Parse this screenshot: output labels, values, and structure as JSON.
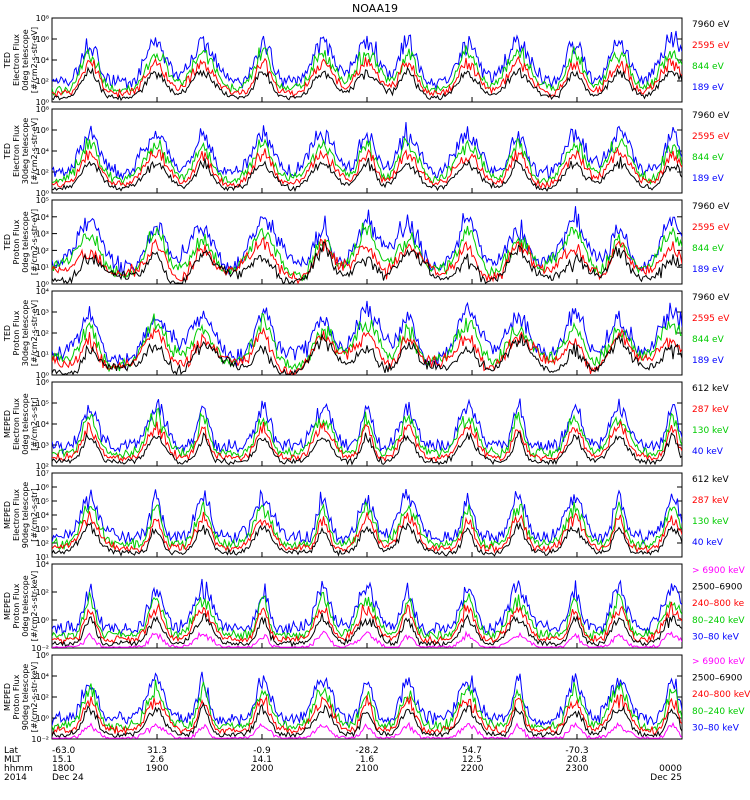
{
  "title": "NOAA19",
  "colors": {
    "blue": "#0000ff",
    "red": "#ff0000",
    "green": "#00cc00",
    "black": "#000000",
    "magenta": "#ff00ff"
  },
  "chart_data": [
    {
      "type": "line",
      "ylabel_lines": [
        "TED",
        "Electron Flux",
        "0deg telescope",
        "[#/cm2-s-str-eV]"
      ],
      "ytick_labels": [
        "10⁰",
        "10²",
        "10⁴",
        "10⁶",
        "10⁸"
      ],
      "ylim_log10": [
        0,
        8
      ],
      "legend": [
        {
          "label": "7960 eV",
          "color": "#000000"
        },
        {
          "label": "2595 eV",
          "color": "#ff0000"
        },
        {
          "label": "844 eV",
          "color": "#00cc00"
        },
        {
          "label": "189 eV",
          "color": "#0000ff"
        }
      ]
    },
    {
      "type": "line",
      "ylabel_lines": [
        "TED",
        "Electron Flux",
        "30deg telescope",
        "[#/cm2-s-str-eV]"
      ],
      "ytick_labels": [
        "10⁰",
        "10²",
        "10⁴",
        "10⁶",
        "10⁸"
      ],
      "ylim_log10": [
        0,
        8
      ],
      "legend": [
        {
          "label": "7960 eV",
          "color": "#000000"
        },
        {
          "label": "2595 eV",
          "color": "#ff0000"
        },
        {
          "label": "844 eV",
          "color": "#00cc00"
        },
        {
          "label": "189 eV",
          "color": "#0000ff"
        }
      ]
    },
    {
      "type": "line",
      "ylabel_lines": [
        "TED",
        "Proton Flux",
        "0deg telescope",
        "[#/cm2-s-str-eV]"
      ],
      "ytick_labels": [
        "10⁰",
        "10¹",
        "10²",
        "10³",
        "10⁴",
        "10⁵"
      ],
      "ylim_log10": [
        0,
        5
      ],
      "legend": [
        {
          "label": "7960 eV",
          "color": "#000000"
        },
        {
          "label": "2595 eV",
          "color": "#ff0000"
        },
        {
          "label": "844 eV",
          "color": "#00cc00"
        },
        {
          "label": "189 eV",
          "color": "#0000ff"
        }
      ]
    },
    {
      "type": "line",
      "ylabel_lines": [
        "TED",
        "Proton Flux",
        "30deg telescope",
        "[#/cm2-s-str-eV]"
      ],
      "ytick_labels": [
        "10⁰",
        "10¹",
        "10²",
        "10³",
        "10⁴"
      ],
      "ylim_log10": [
        0,
        4
      ],
      "legend": [
        {
          "label": "7960 eV",
          "color": "#000000"
        },
        {
          "label": "2595 eV",
          "color": "#ff0000"
        },
        {
          "label": "844 eV",
          "color": "#00cc00"
        },
        {
          "label": "189 eV",
          "color": "#0000ff"
        }
      ]
    },
    {
      "type": "line",
      "ylabel_lines": [
        "MEPED",
        "Electron Flux",
        "0deg telescope",
        "[#/cm2-s-str]"
      ],
      "ytick_labels": [
        "10²",
        "10³",
        "10⁴",
        "10⁵",
        "10⁶"
      ],
      "ylim_log10": [
        2,
        6
      ],
      "legend": [
        {
          "label": "612 keV",
          "color": "#000000"
        },
        {
          "label": "287 keV",
          "color": "#ff0000"
        },
        {
          "label": "130 keV",
          "color": "#00cc00"
        },
        {
          "label": "40 keV",
          "color": "#0000ff"
        }
      ]
    },
    {
      "type": "line",
      "ylabel_lines": [
        "MEPED",
        "Electron Flux",
        "90deg telescope",
        "[#/cm2-s-str]"
      ],
      "ytick_labels": [
        "10¹",
        "10²",
        "10³",
        "10⁴",
        "10⁵",
        "10⁶",
        "10⁷"
      ],
      "ylim_log10": [
        1,
        7
      ],
      "legend": [
        {
          "label": "612 keV",
          "color": "#000000"
        },
        {
          "label": "287 keV",
          "color": "#ff0000"
        },
        {
          "label": "130 keV",
          "color": "#00cc00"
        },
        {
          "label": "40 keV",
          "color": "#0000ff"
        }
      ]
    },
    {
      "type": "line",
      "ylabel_lines": [
        "MEPED",
        "Proton Flux",
        "0deg telescope",
        "[#/cm2-s-str-keV]"
      ],
      "ytick_labels": [
        "10⁻²",
        "10⁰",
        "10²",
        "10⁴"
      ],
      "ylim_log10": [
        -2,
        5
      ],
      "legend": [
        {
          "label": "> 6900 keV",
          "color": "#ff00ff"
        },
        {
          "label": "2500–6900",
          "color": "#000000"
        },
        {
          "label": "240–800 ke",
          "color": "#ff0000"
        },
        {
          "label": "80–240 keV",
          "color": "#00cc00"
        },
        {
          "label": "30–80 keV",
          "color": "#0000ff"
        }
      ]
    },
    {
      "type": "line",
      "ylabel_lines": [
        "MEPED",
        "Proton Flux",
        "90deg telescope",
        "[#/cm2-s-str-keV]"
      ],
      "ytick_labels": [
        "10⁻²",
        "10⁰",
        "10²",
        "10⁴",
        "10⁶"
      ],
      "ylim_log10": [
        -2,
        6
      ],
      "legend": [
        {
          "label": "> 6900 keV",
          "color": "#ff00ff"
        },
        {
          "label": "2500–6900",
          "color": "#000000"
        },
        {
          "label": "240–800 keV",
          "color": "#ff0000"
        },
        {
          "label": "80–240 keV",
          "color": "#00cc00"
        },
        {
          "label": "30–80 keV",
          "color": "#0000ff"
        }
      ]
    }
  ],
  "xaxis": {
    "row_labels": [
      "Lat",
      "MLT",
      "hhmm",
      "2014"
    ],
    "ticks": [
      {
        "frac": 0.0,
        "lat": "-63.0",
        "mlt": "15.1",
        "hhmm": "1800",
        "date": "Dec 24"
      },
      {
        "frac": 0.1667,
        "lat": "31.3",
        "mlt": "2.6",
        "hhmm": "1900",
        "date": ""
      },
      {
        "frac": 0.3333,
        "lat": "-0.9",
        "mlt": "14.1",
        "hhmm": "2000",
        "date": ""
      },
      {
        "frac": 0.5,
        "lat": "-28.2",
        "mlt": "1.6",
        "hhmm": "2100",
        "date": ""
      },
      {
        "frac": 0.6667,
        "lat": "54.7",
        "mlt": "12.5",
        "hhmm": "2200",
        "date": ""
      },
      {
        "frac": 0.8333,
        "lat": "-70.3",
        "mlt": "20.8",
        "hhmm": "2300",
        "date": ""
      },
      {
        "frac": 1.0,
        "lat": "",
        "mlt": "",
        "hhmm": "0000",
        "date": "Dec 25"
      }
    ]
  }
}
